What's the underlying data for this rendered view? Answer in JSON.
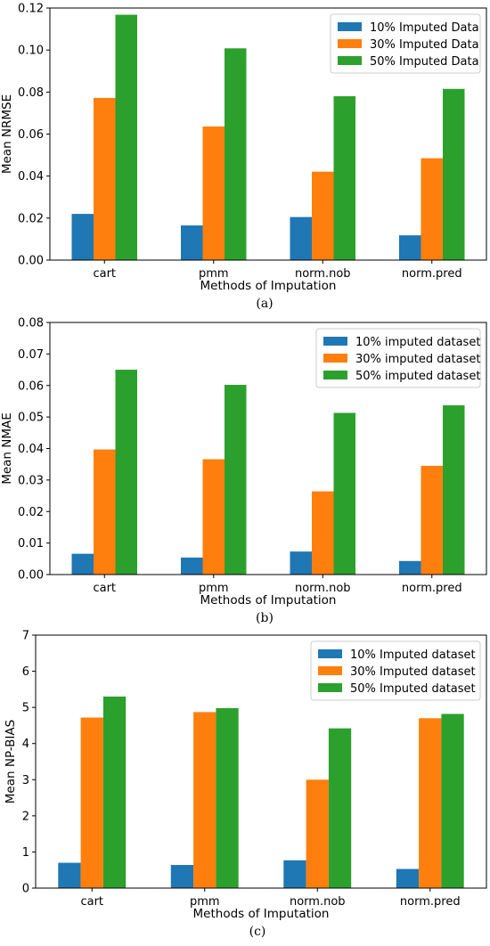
{
  "chart_data": [
    {
      "type": "bar",
      "panel_label": "(a)",
      "title": "",
      "xlabel": "Methods of Imputation",
      "ylabel": "Mean NRMSE",
      "categories": [
        "cart",
        "pmm",
        "norm.nob",
        "norm.pred"
      ],
      "ylim": [
        0,
        0.12
      ],
      "yticks": [
        "0.00",
        "0.02",
        "0.04",
        "0.06",
        "0.08",
        "0.10",
        "0.12"
      ],
      "legend_position": "top-right",
      "series": [
        {
          "name": "10% Imputed Data",
          "color": "#1f77b4",
          "values": [
            0.022,
            0.0165,
            0.0205,
            0.0118
          ]
        },
        {
          "name": "30% Imputed Data",
          "color": "#ff7f0e",
          "values": [
            0.0772,
            0.0636,
            0.0421,
            0.0485
          ]
        },
        {
          "name": "50% Imputed Data",
          "color": "#2ca02c",
          "values": [
            0.1168,
            0.1008,
            0.078,
            0.0815
          ]
        }
      ]
    },
    {
      "type": "bar",
      "panel_label": "(b)",
      "title": "",
      "xlabel": "Methods of Imputation",
      "ylabel": "Mean NMAE",
      "categories": [
        "cart",
        "pmm",
        "norm.nob",
        "norm.pred"
      ],
      "ylim": [
        0,
        0.08
      ],
      "yticks": [
        "0.00",
        "0.01",
        "0.02",
        "0.03",
        "0.04",
        "0.05",
        "0.06",
        "0.07",
        "0.08"
      ],
      "legend_position": "top-right",
      "series": [
        {
          "name": "10% imputed dataset",
          "color": "#1f77b4",
          "values": [
            0.0066,
            0.0054,
            0.0073,
            0.0043
          ]
        },
        {
          "name": "30% imputed dataset",
          "color": "#ff7f0e",
          "values": [
            0.0397,
            0.0366,
            0.0264,
            0.0345
          ]
        },
        {
          "name": "50% imputed dataset",
          "color": "#2ca02c",
          "values": [
            0.065,
            0.0602,
            0.0513,
            0.0537
          ]
        }
      ]
    },
    {
      "type": "bar",
      "panel_label": "(c)",
      "title": "",
      "xlabel": "Methods of Imputation",
      "ylabel": "Mean NP-BIAS",
      "categories": [
        "cart",
        "pmm",
        "norm.nob",
        "norm.pred"
      ],
      "ylim": [
        0,
        7
      ],
      "yticks": [
        "0",
        "1",
        "2",
        "3",
        "4",
        "5",
        "6",
        "7"
      ],
      "legend_position": "top-right",
      "series": [
        {
          "name": "10% Imputed dataset",
          "color": "#1f77b4",
          "values": [
            0.7,
            0.64,
            0.77,
            0.53
          ]
        },
        {
          "name": "30% Imputed dataset",
          "color": "#ff7f0e",
          "values": [
            4.72,
            4.87,
            3.0,
            4.7
          ]
        },
        {
          "name": "50% Imputed dataset",
          "color": "#2ca02c",
          "values": [
            5.3,
            4.98,
            4.42,
            4.82
          ]
        }
      ]
    }
  ]
}
